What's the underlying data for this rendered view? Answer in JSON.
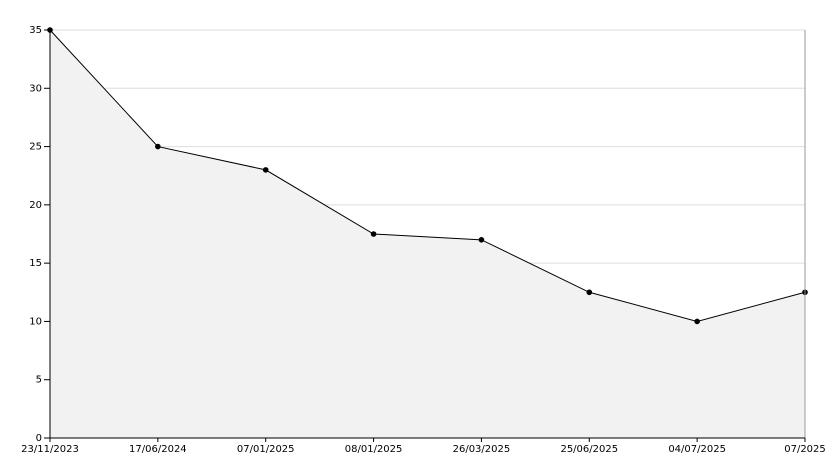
{
  "chart_data": {
    "type": "area",
    "categories": [
      "23/11/2023",
      "17/06/2024",
      "07/01/2025",
      "08/01/2025",
      "26/03/2025",
      "25/06/2025",
      "04/07/2025",
      "07/2025"
    ],
    "values": [
      35,
      25,
      23,
      17.5,
      17,
      12.5,
      10,
      12.5
    ],
    "color": "#000000",
    "fill": "#f2f2f2",
    "ylim": [
      0,
      35
    ],
    "yticks": [
      0,
      5,
      10,
      15,
      20,
      25,
      30,
      35
    ],
    "grid": true
  }
}
